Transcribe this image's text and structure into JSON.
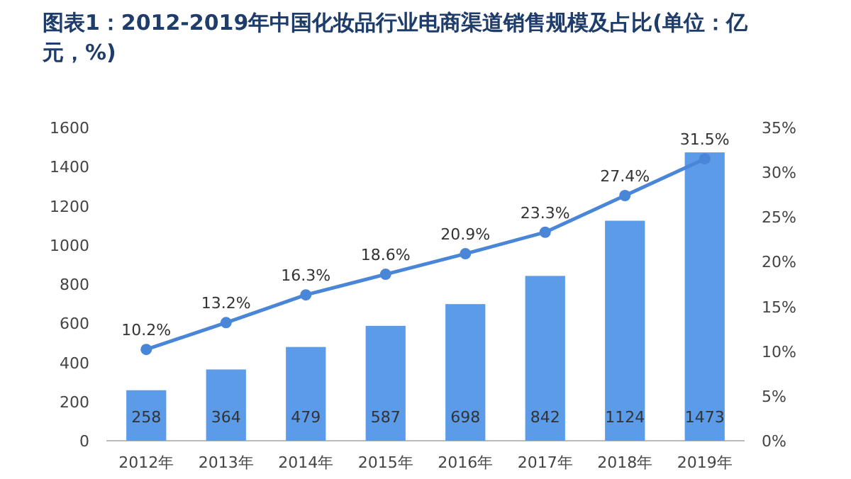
{
  "chart_data": {
    "type": "bar",
    "title": "图表1：2012-2019年中国化妆品行业电商渠道销售规模及占比(单位：亿元，%)",
    "categories": [
      "2012年",
      "2013年",
      "2014年",
      "2015年",
      "2016年",
      "2017年",
      "2018年",
      "2019年"
    ],
    "series": [
      {
        "color": "#5b9be8",
        "values": [
          258,
          364,
          479,
          587,
          698,
          842,
          1124,
          1473
        ]
      },
      {
        "type": "line",
        "axis": "y2",
        "color": "#4a86d8",
        "values": [
          10.2,
          13.2,
          16.3,
          18.6,
          20.9,
          23.3,
          27.4,
          31.5
        ],
        "value_labels": [
          "10.2%",
          "13.2%",
          "16.3%",
          "18.6%",
          "20.9%",
          "23.3%",
          "27.4%",
          "31.5%"
        ]
      }
    ],
    "data_labels": true,
    "marker": "circle",
    "line_style": "solid",
    "ylim": [
      0,
      1600
    ],
    "yticks": [
      0,
      200,
      400,
      600,
      800,
      1000,
      1200,
      1400,
      1600
    ],
    "y2lim": [
      0,
      35
    ],
    "y2ticks": [
      {
        "value": 0,
        "label": "0%"
      },
      {
        "value": 5,
        "label": "5%"
      },
      {
        "value": 10,
        "label": "10%"
      },
      {
        "value": 15,
        "label": "15%"
      },
      {
        "value": 20,
        "label": "20%"
      },
      {
        "value": 25,
        "label": "25%"
      },
      {
        "value": 30,
        "label": "30%"
      },
      {
        "value": 35,
        "label": "35%"
      }
    ]
  }
}
